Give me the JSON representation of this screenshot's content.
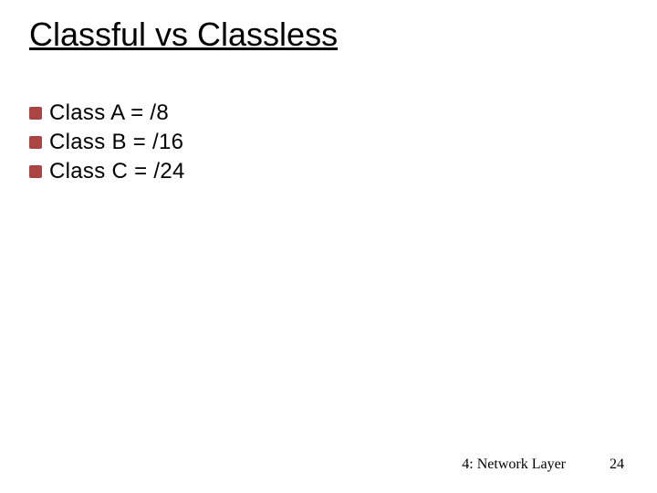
{
  "slide": {
    "title": "Classful vs Classless",
    "title_color": "#000000",
    "title_fontsize": 36,
    "underline": true,
    "background_color": "#ffffff",
    "bullets": {
      "marker_color": "#ab4544",
      "text_color": "#000000",
      "text_fontsize": 24,
      "items": [
        {
          "text": "Class A = /8"
        },
        {
          "text": "Class B = /16"
        },
        {
          "text": "Class C = /24"
        }
      ]
    },
    "footer": {
      "label": "4: Network Layer",
      "page_number": "24",
      "color": "#000000",
      "fontsize": 16
    }
  }
}
